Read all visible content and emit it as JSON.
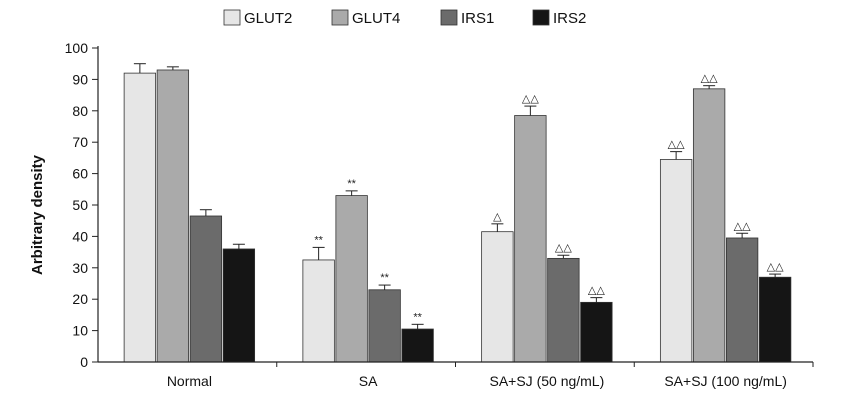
{
  "chart_data": {
    "type": "bar",
    "title": "",
    "xlabel": "",
    "ylabel": "Arbitrary density",
    "ylim": [
      0,
      100
    ],
    "yticks": [
      0,
      10,
      20,
      30,
      40,
      50,
      60,
      70,
      80,
      90,
      100
    ],
    "categories": [
      "Normal",
      "SA",
      "SA+SJ (50 ng/mL)",
      "SA+SJ (100 ng/mL)"
    ],
    "legend_position": "top-center",
    "series": [
      {
        "name": "GLUT2",
        "color": "#e6e6e6",
        "values": [
          92,
          32.5,
          41.5,
          64.5
        ],
        "errors": [
          3.0,
          4.0,
          2.5,
          2.5
        ],
        "annotations": [
          "",
          "**",
          "△",
          "△△"
        ]
      },
      {
        "name": "GLUT4",
        "color": "#aaaaaa",
        "values": [
          93,
          53,
          78.5,
          87
        ],
        "errors": [
          1.0,
          1.5,
          3.0,
          1.0
        ],
        "annotations": [
          "",
          "**",
          "△△",
          "△△"
        ]
      },
      {
        "name": "IRS1",
        "color": "#6b6b6b",
        "values": [
          46.5,
          23,
          33,
          39.5
        ],
        "errors": [
          2.0,
          1.5,
          1.0,
          1.5
        ],
        "annotations": [
          "",
          "**",
          "△△",
          "△△"
        ]
      },
      {
        "name": "IRS2",
        "color": "#151515",
        "values": [
          36,
          10.5,
          19,
          27
        ],
        "errors": [
          1.5,
          1.5,
          1.5,
          1.0
        ],
        "annotations": [
          "",
          "**",
          "△△",
          "△△"
        ]
      }
    ]
  }
}
